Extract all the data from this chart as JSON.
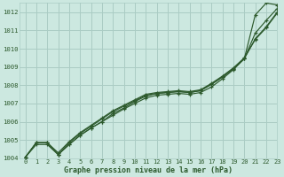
{
  "title": "",
  "xlabel": "Graphe pression niveau de la mer (hPa)",
  "ylabel": "",
  "bg_color": "#cce8e0",
  "grid_color": "#aaccC4",
  "line_color": "#2d5a2d",
  "text_color": "#2d5a2d",
  "ylim": [
    1004,
    1012.5
  ],
  "xlim": [
    -0.5,
    23
  ],
  "yticks": [
    1004,
    1005,
    1006,
    1007,
    1008,
    1009,
    1010,
    1011,
    1012
  ],
  "xticks": [
    0,
    1,
    2,
    3,
    4,
    5,
    6,
    7,
    8,
    9,
    10,
    11,
    12,
    13,
    14,
    15,
    16,
    17,
    18,
    19,
    20,
    21,
    22,
    23
  ],
  "series": [
    [
      1004.05,
      1004.85,
      1004.85,
      1004.2,
      1004.85,
      1005.35,
      1005.75,
      1006.15,
      1006.55,
      1006.85,
      1007.15,
      1007.45,
      1007.55,
      1007.6,
      1007.65,
      1007.6,
      1007.7,
      1008.05,
      1008.45,
      1008.9,
      1009.45,
      1010.55,
      1011.2,
      1012.0
    ],
    [
      1004.05,
      1004.75,
      1004.75,
      1004.2,
      1004.75,
      1005.25,
      1005.65,
      1006.0,
      1006.45,
      1006.75,
      1007.1,
      1007.4,
      1007.55,
      1007.6,
      1007.65,
      1007.6,
      1007.7,
      1008.05,
      1008.45,
      1008.9,
      1009.45,
      1010.85,
      1011.55,
      1012.2
    ],
    [
      1004.05,
      1004.85,
      1004.85,
      1004.3,
      1004.9,
      1005.4,
      1005.8,
      1006.2,
      1006.6,
      1006.9,
      1007.2,
      1007.5,
      1007.6,
      1007.65,
      1007.7,
      1007.65,
      1007.75,
      1008.1,
      1008.5,
      1008.95,
      1009.5,
      1010.5,
      1011.15,
      1011.95
    ],
    [
      1004.05,
      1004.85,
      1004.85,
      1004.2,
      1004.75,
      1005.25,
      1005.65,
      1006.0,
      1006.35,
      1006.7,
      1007.0,
      1007.3,
      1007.45,
      1007.5,
      1007.55,
      1007.5,
      1007.6,
      1007.9,
      1008.35,
      1008.85,
      1009.45,
      1011.85,
      1012.5,
      1012.4
    ]
  ]
}
